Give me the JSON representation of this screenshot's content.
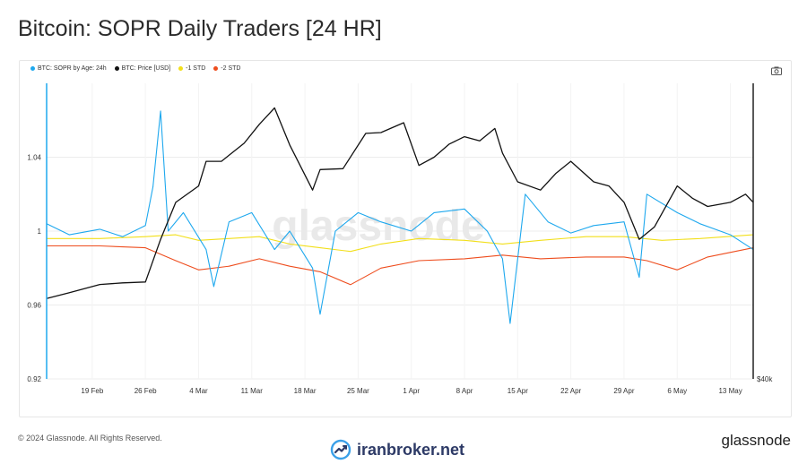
{
  "title": "Bitcoin: SOPR Daily Traders [24 HR]",
  "legend": [
    {
      "label": "BTC: SOPR by Age: 24h",
      "color": "#1ea8ee"
    },
    {
      "label": "BTC: Price [USD]",
      "color": "#111111"
    },
    {
      "label": "-1 STD",
      "color": "#f2df1a"
    },
    {
      "label": "-2 STD",
      "color": "#ee4d1e"
    }
  ],
  "camera_icon": "camera-icon",
  "watermark": "glassnode",
  "footer": {
    "copyright": "© 2024 Glassnode. All Rights Reserved.",
    "brand": "iranbroker.net",
    "logo": "glassnode"
  },
  "chart_data": {
    "type": "line",
    "title": "Bitcoin: SOPR Daily Traders [24 HR]",
    "xlabel": "",
    "ylabel": "",
    "x_ticks": [
      "19 Feb",
      "26 Feb",
      "4 Mar",
      "11 Mar",
      "18 Mar",
      "25 Mar",
      "1 Apr",
      "8 Apr",
      "15 Apr",
      "22 Apr",
      "29 Apr",
      "6 May",
      "13 May"
    ],
    "y_ticks": [
      "0.92",
      "0.96",
      "1",
      "1.04"
    ],
    "y2_ticks": [
      "$40k"
    ],
    "ylim": [
      0.92,
      1.08
    ],
    "y2lim": [
      40000,
      76000
    ],
    "x_range": [
      "2024-02-13",
      "2024-05-16"
    ],
    "grid": true,
    "legend_position": "top-left",
    "series": [
      {
        "name": "BTC: Price [USD]",
        "axis": "right",
        "x": [
          "2024-02-13",
          "2024-02-16",
          "2024-02-20",
          "2024-02-23",
          "2024-02-26",
          "2024-02-28",
          "2024-03-01",
          "2024-03-04",
          "2024-03-05",
          "2024-03-07",
          "2024-03-10",
          "2024-03-12",
          "2024-03-14",
          "2024-03-16",
          "2024-03-19",
          "2024-03-20",
          "2024-03-23",
          "2024-03-26",
          "2024-03-28",
          "2024-03-31",
          "2024-04-02",
          "2024-04-04",
          "2024-04-06",
          "2024-04-08",
          "2024-04-10",
          "2024-04-12",
          "2024-04-13",
          "2024-04-15",
          "2024-04-18",
          "2024-04-20",
          "2024-04-22",
          "2024-04-25",
          "2024-04-27",
          "2024-04-29",
          "2024-05-01",
          "2024-05-03",
          "2024-05-06",
          "2024-05-08",
          "2024-05-10",
          "2024-05-13",
          "2024-05-15",
          "2024-05-16"
        ],
        "values": [
          49800,
          50500,
          51500,
          51700,
          51800,
          57000,
          61500,
          63500,
          66500,
          66500,
          68700,
          71000,
          73000,
          68500,
          63000,
          65500,
          65600,
          69900,
          70000,
          71200,
          66000,
          67000,
          68600,
          69500,
          69000,
          70500,
          67500,
          64000,
          63000,
          65000,
          66500,
          64000,
          63500,
          61500,
          57000,
          58500,
          63500,
          62000,
          61000,
          61500,
          62500,
          61500
        ]
      },
      {
        "name": "BTC: SOPR by Age: 24h",
        "axis": "left",
        "x": [
          "2024-02-13",
          "2024-02-16",
          "2024-02-20",
          "2024-02-23",
          "2024-02-26",
          "2024-02-27",
          "2024-02-28",
          "2024-02-29",
          "2024-03-02",
          "2024-03-05",
          "2024-03-06",
          "2024-03-08",
          "2024-03-11",
          "2024-03-14",
          "2024-03-16",
          "2024-03-19",
          "2024-03-20",
          "2024-03-22",
          "2024-03-25",
          "2024-03-28",
          "2024-04-01",
          "2024-04-04",
          "2024-04-08",
          "2024-04-11",
          "2024-04-13",
          "2024-04-14",
          "2024-04-16",
          "2024-04-19",
          "2024-04-22",
          "2024-04-25",
          "2024-04-29",
          "2024-05-01",
          "2024-05-02",
          "2024-05-06",
          "2024-05-09",
          "2024-05-13",
          "2024-05-16"
        ],
        "values": [
          1.004,
          0.998,
          1.001,
          0.997,
          1.003,
          1.024,
          1.065,
          1.0,
          1.01,
          0.99,
          0.97,
          1.005,
          1.01,
          0.99,
          1.0,
          0.98,
          0.955,
          1.0,
          1.01,
          1.005,
          1.0,
          1.01,
          1.012,
          1.0,
          0.985,
          0.95,
          1.02,
          1.005,
          0.999,
          1.003,
          1.005,
          0.975,
          1.02,
          1.01,
          1.004,
          0.998,
          0.99
        ]
      },
      {
        "name": "-1 STD",
        "axis": "left",
        "x": [
          "2024-02-13",
          "2024-02-20",
          "2024-02-26",
          "2024-03-01",
          "2024-03-04",
          "2024-03-08",
          "2024-03-12",
          "2024-03-16",
          "2024-03-20",
          "2024-03-24",
          "2024-03-28",
          "2024-04-02",
          "2024-04-08",
          "2024-04-13",
          "2024-04-18",
          "2024-04-24",
          "2024-04-29",
          "2024-05-04",
          "2024-05-09",
          "2024-05-16"
        ],
        "values": [
          0.996,
          0.996,
          0.997,
          0.998,
          0.995,
          0.996,
          0.997,
          0.993,
          0.991,
          0.989,
          0.993,
          0.996,
          0.995,
          0.993,
          0.995,
          0.997,
          0.997,
          0.995,
          0.996,
          0.998
        ]
      },
      {
        "name": "-2 STD",
        "axis": "left",
        "x": [
          "2024-02-13",
          "2024-02-20",
          "2024-02-26",
          "2024-03-01",
          "2024-03-04",
          "2024-03-08",
          "2024-03-12",
          "2024-03-16",
          "2024-03-20",
          "2024-03-24",
          "2024-03-28",
          "2024-04-02",
          "2024-04-08",
          "2024-04-13",
          "2024-04-18",
          "2024-04-24",
          "2024-04-29",
          "2024-05-02",
          "2024-05-06",
          "2024-05-10",
          "2024-05-16"
        ],
        "values": [
          0.992,
          0.992,
          0.991,
          0.984,
          0.979,
          0.981,
          0.985,
          0.981,
          0.978,
          0.971,
          0.98,
          0.984,
          0.985,
          0.987,
          0.985,
          0.986,
          0.986,
          0.984,
          0.979,
          0.986,
          0.991
        ]
      }
    ]
  }
}
